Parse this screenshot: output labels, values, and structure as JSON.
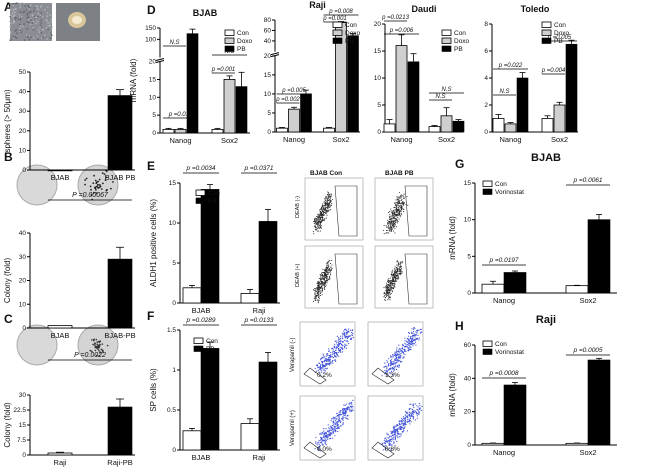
{
  "panel_letters": [
    "A",
    "B",
    "C",
    "D",
    "E",
    "F",
    "G",
    "H"
  ],
  "colors": {
    "black": "#000000",
    "gray": "#cfcfcf",
    "white": "#ffffff",
    "flow_dot": "#2a2a2a",
    "sp_dot": "#3d4fd8"
  },
  "chart_data": [
    {
      "id": "A",
      "type": "bar",
      "title": "",
      "ylabel": "spheres (> 50μm)",
      "categories": [
        "BJAB",
        "BJAB PB"
      ],
      "values": [
        0,
        38
      ],
      "errors": [
        0,
        3
      ],
      "ylim": [
        0,
        50
      ],
      "fills": [
        "white",
        "black"
      ],
      "sig": []
    },
    {
      "id": "B",
      "type": "bar",
      "title": "",
      "ylabel": "Colony (fold)",
      "categories": [
        "BJAB",
        "BJAB-PB"
      ],
      "values": [
        1,
        29
      ],
      "errors": [
        0,
        5
      ],
      "ylim": [
        0,
        40
      ],
      "fills": [
        "white",
        "black"
      ],
      "sig": [
        {
          "text": "P =0.00067"
        }
      ]
    },
    {
      "id": "C",
      "type": "bar",
      "title": "",
      "ylabel": "Colony (fold)",
      "categories": [
        "Raji",
        "Raji-PB"
      ],
      "values": [
        1,
        24
      ],
      "errors": [
        0.4,
        4
      ],
      "ylim": [
        0,
        30
      ],
      "fills": [
        "white",
        "black"
      ],
      "sig": [
        {
          "text": "P =0.0022"
        }
      ]
    },
    {
      "id": "D1",
      "type": "bar",
      "title": "BJAB",
      "ylabel": "mRNA (fold)",
      "categories": [
        "Nanog",
        "Sox2"
      ],
      "series": [
        {
          "name": "Con",
          "values": [
            1,
            1
          ],
          "errors": [
            0.3,
            0.3
          ]
        },
        {
          "name": "Doxo",
          "values": [
            1,
            15
          ],
          "errors": [
            0.3,
            1
          ]
        },
        {
          "name": "PB",
          "values": [
            125,
            13
          ],
          "errors": [
            20,
            4
          ]
        }
      ],
      "ylim": [
        0,
        150
      ],
      "yticks": [
        0,
        5,
        10,
        15,
        20,
        100,
        150
      ],
      "sig": [
        {
          "text": "p =0.012"
        },
        {
          "text": "N.S"
        },
        {
          "text": "p =0.001"
        },
        {
          "text": "N.S"
        }
      ],
      "legend": [
        "Con",
        "Doxo",
        "PB"
      ]
    },
    {
      "id": "D2",
      "type": "bar",
      "title": "Raji",
      "ylabel": "",
      "categories": [
        "Nanog",
        "Sox2"
      ],
      "series": [
        {
          "name": "Con",
          "values": [
            1,
            1
          ],
          "errors": [
            0.2,
            0.2
          ]
        },
        {
          "name": "Doxo",
          "values": [
            6,
            75
          ],
          "errors": [
            0.5,
            2
          ]
        },
        {
          "name": "PB",
          "values": [
            10,
            50
          ],
          "errors": [
            1,
            4
          ]
        }
      ],
      "ylim": [
        0,
        80
      ],
      "yticks": [
        0,
        5,
        10,
        15,
        20,
        40,
        60,
        80
      ],
      "sig": [
        {
          "text": "p =0.002"
        },
        {
          "text": "p =0.005"
        },
        {
          "text": "p =0.001"
        },
        {
          "text": "p =0.008"
        }
      ],
      "legend": [
        "Con",
        "Doxo",
        "PB"
      ]
    },
    {
      "id": "D3",
      "type": "bar",
      "title": "Daudi",
      "ylabel": "",
      "categories": [
        "Nanog",
        "Sox2"
      ],
      "series": [
        {
          "name": "Con",
          "values": [
            1.5,
            1
          ],
          "errors": [
            0.8,
            0.2
          ]
        },
        {
          "name": "Doxo",
          "values": [
            16,
            3
          ],
          "errors": [
            2,
            1.5
          ]
        },
        {
          "name": "PB",
          "values": [
            13,
            2
          ],
          "errors": [
            1.5,
            0.3
          ]
        }
      ],
      "ylim": [
        0,
        20
      ],
      "yticks": [
        0,
        5,
        10,
        15,
        20
      ],
      "sig": [
        {
          "text": "p =0.0213"
        },
        {
          "text": "p =0.006"
        },
        {
          "text": "N.S"
        },
        {
          "text": "N.S"
        }
      ],
      "legend": [
        "Con",
        "Doxo",
        "PB"
      ]
    },
    {
      "id": "D4",
      "type": "bar",
      "title": "Toledo",
      "ylabel": "",
      "categories": [
        "Nanog",
        "Sox2"
      ],
      "series": [
        {
          "name": "Con",
          "values": [
            1,
            1
          ],
          "errors": [
            0.3,
            0.2
          ]
        },
        {
          "name": "Doxo",
          "values": [
            0.6,
            2
          ],
          "errors": [
            0.1,
            0.2
          ]
        },
        {
          "name": "PB",
          "values": [
            4,
            6.5
          ],
          "errors": [
            0.4,
            0.3
          ]
        }
      ],
      "ylim": [
        0,
        8
      ],
      "yticks": [
        0,
        2,
        4,
        6,
        8
      ],
      "sig": [
        {
          "text": "p =0.022"
        },
        {
          "text": "N.S"
        },
        {
          "text": "p =0.004"
        },
        {
          "text": "p =0.005"
        }
      ],
      "legend": [
        "Con",
        "Doxo",
        "PB"
      ]
    },
    {
      "id": "E",
      "type": "bar",
      "title": "",
      "ylabel": "ALDH1 positive cells (%)",
      "categories": [
        "BJAB",
        "Raji"
      ],
      "series": [
        {
          "name": "Con",
          "values": [
            1.9,
            1.2
          ],
          "errors": [
            0.3,
            0.5
          ]
        },
        {
          "name": "PB",
          "values": [
            14.2,
            10.2
          ],
          "errors": [
            0.6,
            1.5
          ]
        }
      ],
      "ylim": [
        0,
        15
      ],
      "yticks": [
        0,
        5,
        10,
        15
      ],
      "sig": [
        {
          "text": "p =0.0034"
        },
        {
          "text": "p =0.0371"
        }
      ],
      "legend": [
        "Con",
        "PB"
      ]
    },
    {
      "id": "F",
      "type": "bar",
      "title": "",
      "ylabel": "SP cells (%)",
      "categories": [
        "BJAB",
        "Raji"
      ],
      "series": [
        {
          "name": "Con",
          "values": [
            0.24,
            0.33
          ],
          "errors": [
            0.03,
            0.06
          ]
        },
        {
          "name": "PB",
          "values": [
            1.27,
            1.1
          ],
          "errors": [
            0.08,
            0.12
          ]
        }
      ],
      "ylim": [
        0,
        1.5
      ],
      "yticks": [
        0.0,
        0.5,
        1.0,
        1.5
      ],
      "sig": [
        {
          "text": "p =0.0289"
        },
        {
          "text": "p =0.0133"
        }
      ],
      "legend": [
        "Con",
        "PB"
      ]
    },
    {
      "id": "G",
      "type": "bar",
      "title": "BJAB",
      "ylabel": "mRNA (fold)",
      "categories": [
        "Nanog",
        "Sox2"
      ],
      "series": [
        {
          "name": "Con",
          "values": [
            1.2,
            1
          ],
          "errors": [
            0.4,
            0.05
          ]
        },
        {
          "name": "Vorinostat",
          "values": [
            2.8,
            10
          ],
          "errors": [
            0.2,
            0.7
          ]
        }
      ],
      "ylim": [
        0,
        15
      ],
      "yticks": [
        0,
        5,
        10,
        15
      ],
      "sig": [
        {
          "text": "p =0.0197"
        },
        {
          "text": "p =0.0061"
        }
      ],
      "legend": [
        "Con",
        "Vorinostat"
      ]
    },
    {
      "id": "H",
      "type": "bar",
      "title": "Raji",
      "ylabel": "mRNA (fold)",
      "categories": [
        "Nanog",
        "Sox2"
      ],
      "series": [
        {
          "name": "Con",
          "values": [
            1,
            1
          ],
          "errors": [
            0.2,
            0.2
          ]
        },
        {
          "name": "Vorinostat",
          "values": [
            36,
            51
          ],
          "errors": [
            1.5,
            1
          ]
        }
      ],
      "ylim": [
        0,
        60
      ],
      "yticks": [
        0,
        20,
        40,
        60
      ],
      "sig": [
        {
          "text": "p =0.0008"
        },
        {
          "text": "p =0.0005"
        }
      ],
      "legend": [
        "Con",
        "Vorinostat"
      ]
    }
  ],
  "flow_panels": {
    "aldh": {
      "col_titles": [
        "BJAB Con",
        "BJAB PB"
      ],
      "row_labels": [
        "DEAB (-)",
        "DEAB (+)"
      ],
      "xaxis": "FITC-A",
      "yaxis": "SSC-A"
    },
    "sp": {
      "row_labels": [
        "Verapamil (-)",
        "Verapamil (+)"
      ],
      "gate_pcts": [
        "0.2%",
        "1.3%",
        "0.0%",
        "0.8%"
      ]
    }
  }
}
